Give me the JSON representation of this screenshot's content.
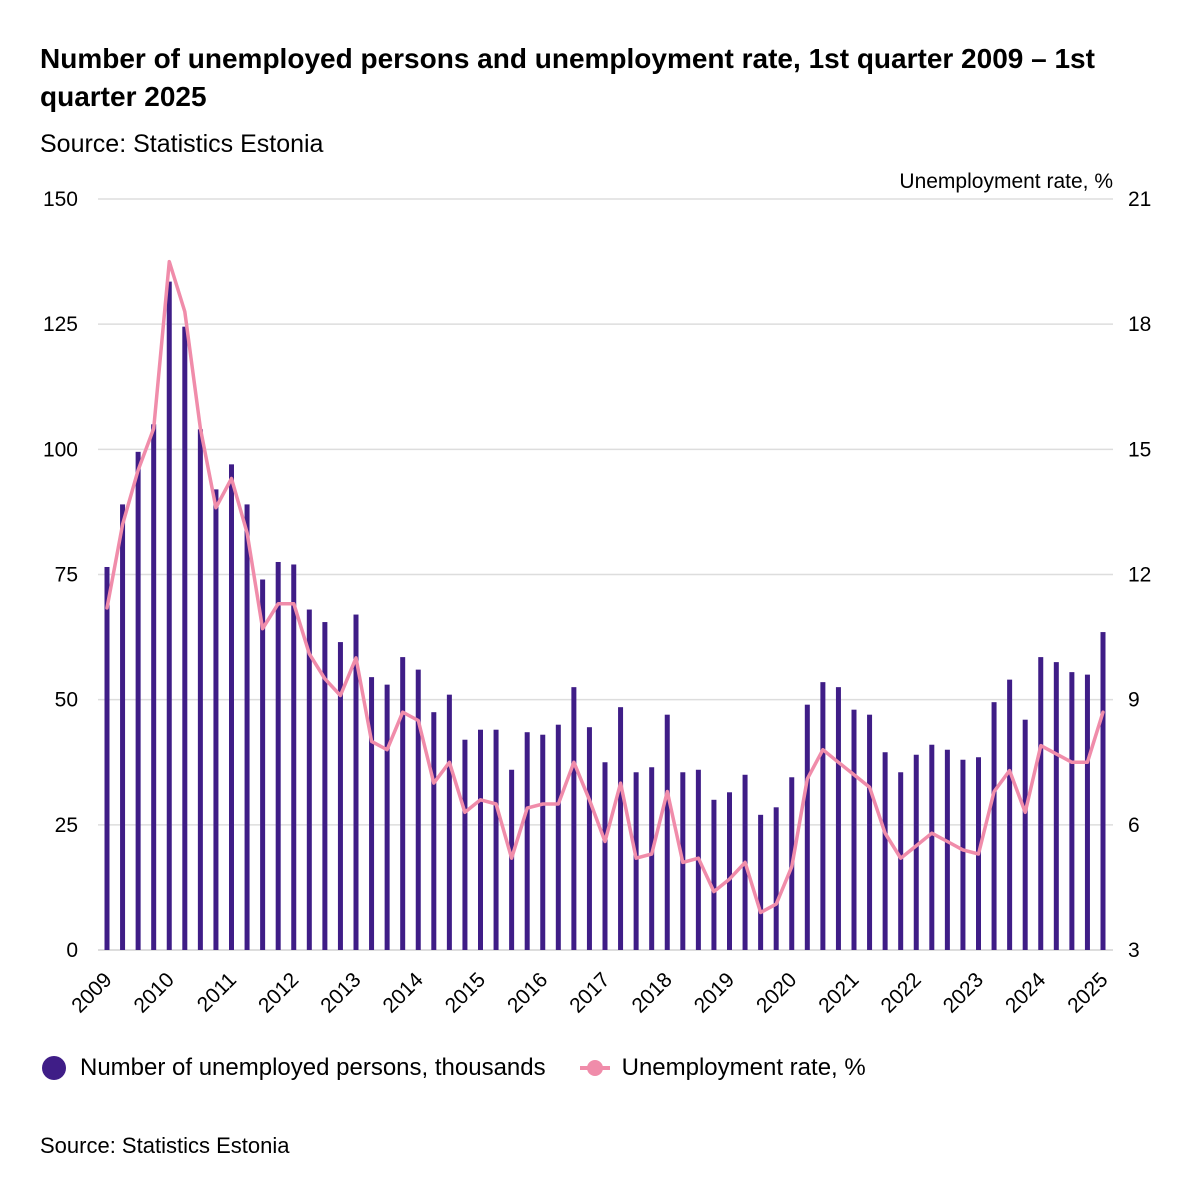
{
  "title": "Number of unemployed persons and unemployment rate, 1st quarter 2009 – 1st quarter 2025",
  "subtitle": "Source: Statistics Estonia",
  "footer_source": "Source: Statistics Estonia",
  "colors": {
    "bars": "#3f1d87",
    "line": "#f08caa",
    "grid": "#dddddd"
  },
  "legend": {
    "bars_label": "Number of unemployed persons, thousands",
    "line_label": "Unemployment rate, %"
  },
  "chart_data": {
    "type": "bar",
    "title": "Number of unemployed persons and unemployment rate, 1st quarter 2009 – 1st quarter 2025",
    "x_tick_labels": [
      "2009",
      "2010",
      "2011",
      "2012",
      "2013",
      "2014",
      "2015",
      "2016",
      "2017",
      "2018",
      "2019",
      "2020",
      "2021",
      "2022",
      "2023",
      "2024",
      "2025"
    ],
    "left_axis": {
      "ylim": [
        0,
        150
      ],
      "ticks": [
        0,
        25,
        50,
        75,
        100,
        125,
        150
      ]
    },
    "right_axis": {
      "label": "Unemployment rate, %",
      "ylim": [
        3,
        21
      ],
      "ticks": [
        3,
        6,
        9,
        12,
        15,
        18,
        21
      ]
    },
    "grid": true,
    "legend_position": "bottom-left",
    "x": [
      "2009 Q1",
      "2009 Q2",
      "2009 Q3",
      "2009 Q4",
      "2010 Q1",
      "2010 Q2",
      "2010 Q3",
      "2010 Q4",
      "2011 Q1",
      "2011 Q2",
      "2011 Q3",
      "2011 Q4",
      "2012 Q1",
      "2012 Q2",
      "2012 Q3",
      "2012 Q4",
      "2013 Q1",
      "2013 Q2",
      "2013 Q3",
      "2013 Q4",
      "2014 Q1",
      "2014 Q2",
      "2014 Q3",
      "2014 Q4",
      "2015 Q1",
      "2015 Q2",
      "2015 Q3",
      "2015 Q4",
      "2016 Q1",
      "2016 Q2",
      "2016 Q3",
      "2016 Q4",
      "2017 Q1",
      "2017 Q2",
      "2017 Q3",
      "2017 Q4",
      "2018 Q1",
      "2018 Q2",
      "2018 Q3",
      "2018 Q4",
      "2019 Q1",
      "2019 Q2",
      "2019 Q3",
      "2019 Q4",
      "2020 Q1",
      "2020 Q2",
      "2020 Q3",
      "2020 Q4",
      "2021 Q1",
      "2021 Q2",
      "2021 Q3",
      "2021 Q4",
      "2022 Q1",
      "2022 Q2",
      "2022 Q3",
      "2022 Q4",
      "2023 Q1",
      "2023 Q2",
      "2023 Q3",
      "2023 Q4",
      "2024 Q1",
      "2024 Q2",
      "2024 Q3",
      "2024 Q4",
      "2025 Q1"
    ],
    "series": [
      {
        "name": "Number of unemployed persons, thousands",
        "type": "bar",
        "axis": "left",
        "values": [
          76.5,
          89.0,
          99.5,
          105.0,
          133.5,
          124.5,
          104.0,
          92.0,
          97.0,
          89.0,
          74.0,
          77.5,
          77.0,
          68.0,
          65.5,
          61.5,
          67.0,
          54.5,
          53.0,
          58.5,
          56.0,
          47.5,
          51.0,
          42.0,
          44.0,
          44.0,
          36.0,
          43.5,
          43.0,
          45.0,
          52.5,
          44.5,
          37.5,
          48.5,
          35.5,
          36.5,
          47.0,
          35.5,
          36.0,
          30.0,
          31.5,
          35.0,
          27.0,
          28.5,
          34.5,
          49.0,
          53.5,
          52.5,
          48.0,
          47.0,
          39.5,
          35.5,
          39.0,
          41.0,
          40.0,
          38.0,
          38.5,
          49.5,
          54.0,
          46.0,
          58.5,
          57.5,
          55.5,
          55.0,
          63.5
        ]
      },
      {
        "name": "Unemployment rate, %",
        "type": "line",
        "axis": "right",
        "values": [
          11.2,
          13.2,
          14.5,
          15.5,
          19.5,
          18.3,
          15.5,
          13.6,
          14.3,
          13.0,
          10.7,
          11.3,
          11.3,
          10.1,
          9.5,
          9.1,
          10.0,
          8.0,
          7.8,
          8.7,
          8.5,
          7.0,
          7.5,
          6.3,
          6.6,
          6.5,
          5.2,
          6.4,
          6.5,
          6.5,
          7.5,
          6.6,
          5.6,
          7.0,
          5.2,
          5.3,
          6.8,
          5.1,
          5.2,
          4.4,
          4.7,
          5.1,
          3.9,
          4.1,
          5.0,
          7.1,
          7.8,
          7.5,
          7.2,
          6.9,
          5.8,
          5.2,
          5.5,
          5.8,
          5.6,
          5.4,
          5.3,
          6.8,
          7.3,
          6.3,
          7.9,
          7.7,
          7.5,
          7.5,
          8.7
        ]
      }
    ]
  }
}
